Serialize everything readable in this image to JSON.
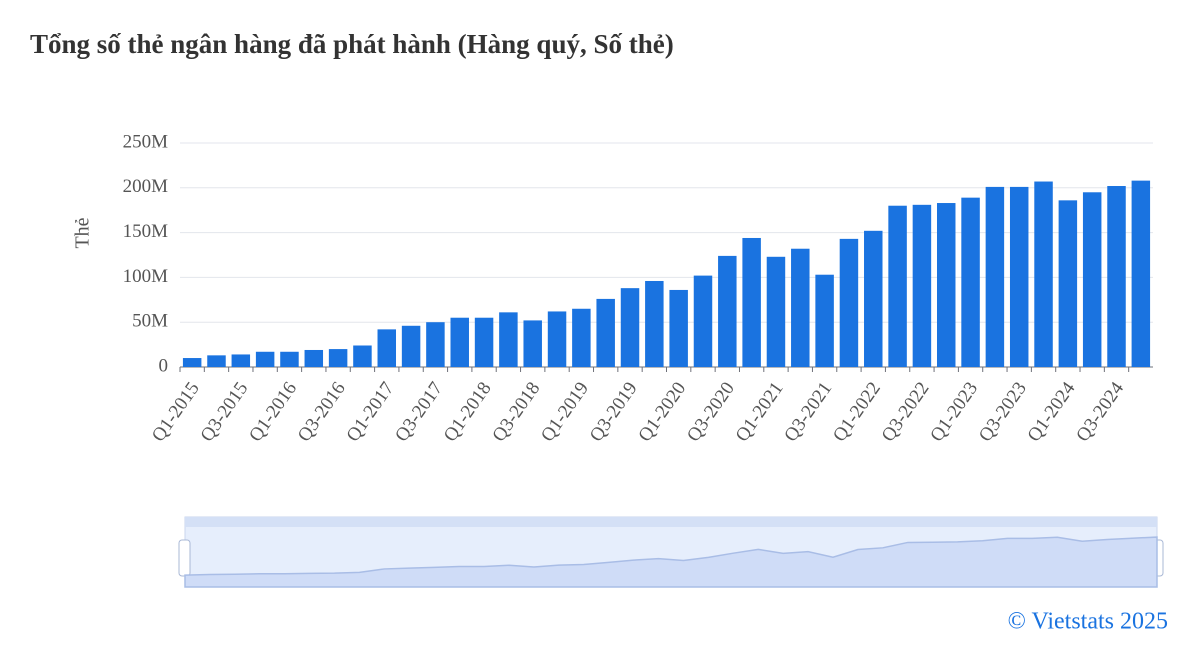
{
  "chart_data": {
    "type": "bar",
    "title": "Tổng số thẻ ngân hàng đã phát hành (Hàng quý, Số thẻ)",
    "y_label": "Thẻ",
    "footer": "© Vietstats 2025",
    "categories": [
      "Q1-2015",
      null,
      "Q3-2015",
      null,
      "Q1-2016",
      null,
      "Q3-2016",
      null,
      "Q1-2017",
      null,
      "Q3-2017",
      null,
      "Q1-2018",
      null,
      "Q3-2018",
      null,
      "Q1-2019",
      null,
      "Q3-2019",
      null,
      "Q1-2020",
      null,
      "Q3-2020",
      null,
      "Q1-2021",
      null,
      "Q3-2021",
      null,
      "Q1-2022",
      null,
      "Q3-2022",
      null,
      "Q1-2023",
      null,
      "Q3-2023",
      null,
      "Q1-2024",
      null,
      "Q3-2024",
      null
    ],
    "values": [
      10000000,
      13000000,
      14000000,
      17000000,
      17000000,
      19000000,
      20000000,
      24000000,
      42000000,
      46000000,
      50000000,
      55000000,
      55000000,
      61000000,
      52000000,
      62000000,
      65000000,
      76000000,
      88000000,
      96000000,
      86000000,
      102000000,
      124000000,
      144000000,
      123000000,
      132000000,
      103000000,
      143000000,
      152000000,
      180000000,
      181000000,
      183000000,
      189000000,
      201000000,
      201000000,
      207000000,
      186000000,
      195000000,
      202000000,
      208000000
    ],
    "color": "#1a73e0",
    "ylim": [
      0,
      250000000
    ],
    "yticks": [
      0,
      {
        "value": 50000000,
        "label": "50M"
      },
      {
        "value": 100000000,
        "label": "100M"
      },
      {
        "value": 150000000,
        "label": "150M"
      },
      {
        "value": 200000000,
        "label": "200M"
      },
      {
        "value": 250000000,
        "label": "250M"
      }
    ],
    "grid": true
  }
}
